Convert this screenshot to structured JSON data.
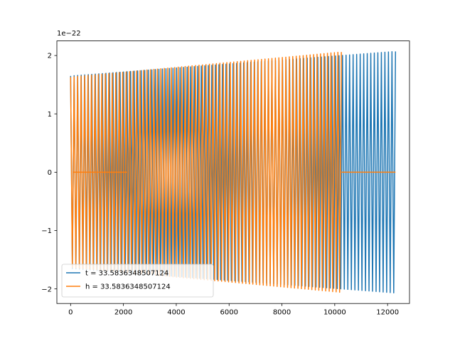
{
  "chart_data": {
    "type": "line",
    "title": "",
    "xlabel": "",
    "ylabel": "",
    "xlim": [
      -520,
      12830
    ],
    "ylim": [
      -2.25e-22,
      2.25e-22
    ],
    "x_ticks": [
      0,
      2000,
      4000,
      6000,
      8000,
      10000,
      12000
    ],
    "y_ticks": [
      -2e-22,
      -1e-22,
      0,
      1e-22,
      2e-22
    ],
    "x_tick_labels": [
      "0",
      "2000",
      "4000",
      "6000",
      "8000",
      "10000",
      "12000"
    ],
    "y_tick_labels": [
      "−2",
      "−1",
      "0",
      "1",
      "2"
    ],
    "y_offset_label": "1e−22",
    "grid": false,
    "legend_position": "lower-left",
    "series": [
      {
        "name": "t = 33.5836348507124",
        "color": "#1f77b4",
        "envelope": {
          "x": [
            0,
            12300
          ],
          "y": [
            1.65e-22,
            2.07e-22
          ]
        },
        "zero_band": [],
        "x_end": 12300,
        "cycles": 92
      },
      {
        "name": "h = 33.5836348507124",
        "color": "#ff7f0e",
        "envelope": {
          "x": [
            0,
            10250
          ],
          "y": [
            1.63e-22,
            2.06e-22
          ]
        },
        "zero_band": [
          {
            "from": 80,
            "to": 2150
          },
          {
            "from": 10250,
            "to": 12300
          }
        ],
        "x_end": 10250,
        "cycles": 78
      }
    ]
  }
}
